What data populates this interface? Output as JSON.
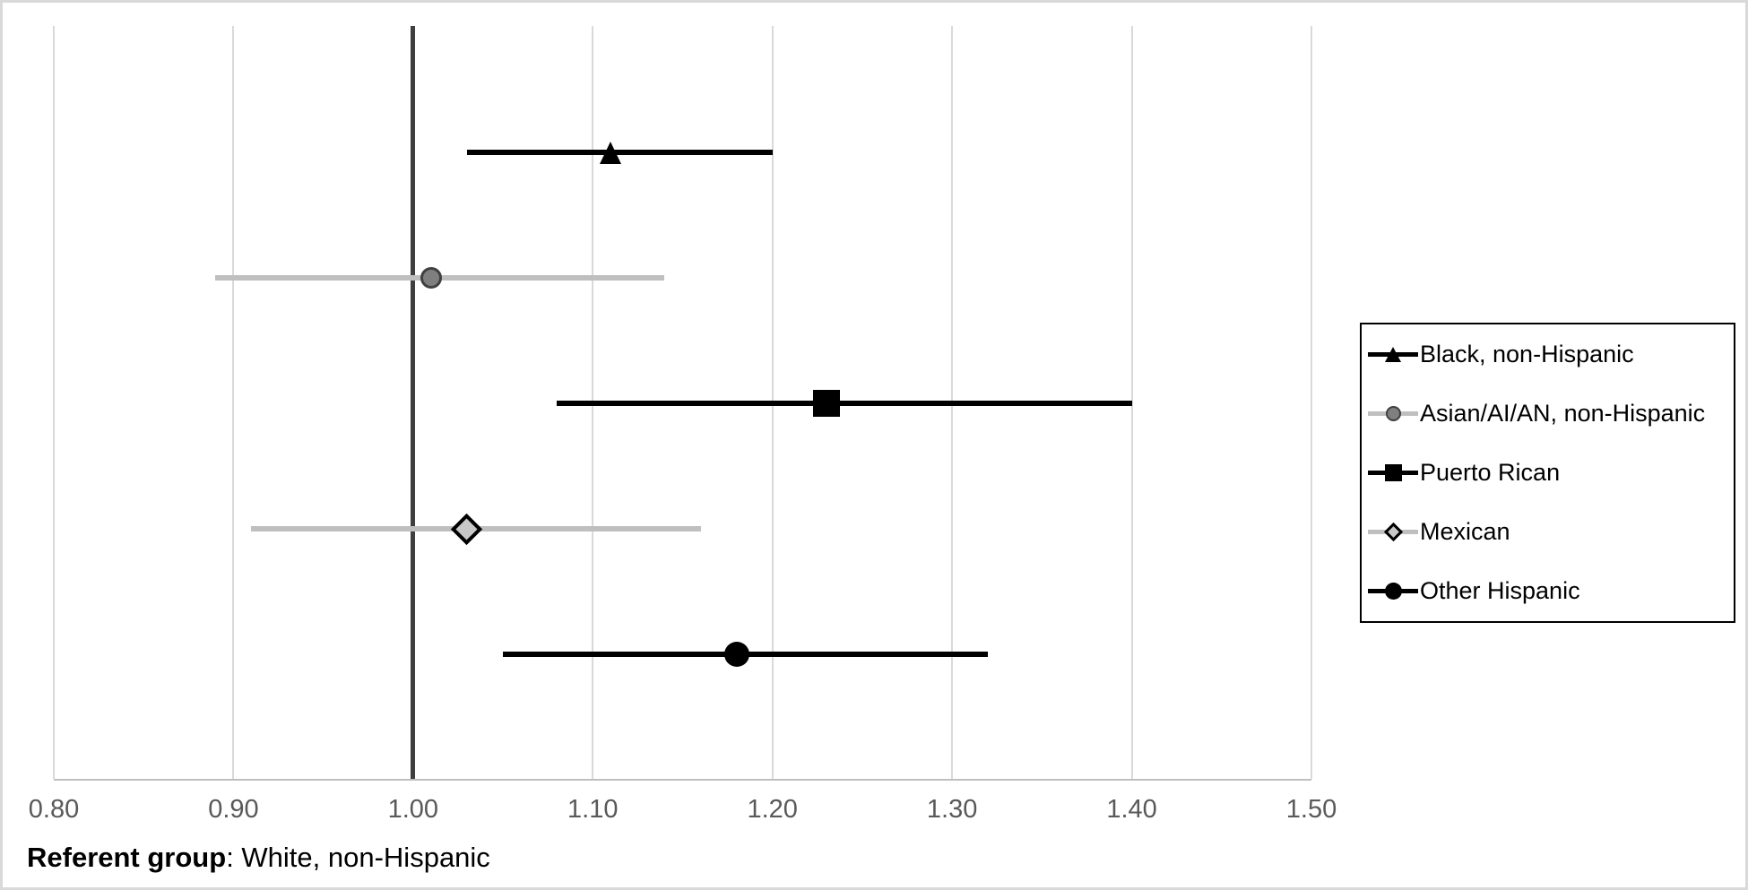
{
  "figure": {
    "background": "#ffffff",
    "outer_border_color": "#d9d9d9",
    "gridline_color": "#d9d9d9",
    "axis_line_color": "#bfbfbf",
    "tick_label_color": "#595959"
  },
  "chart_data": {
    "type": "scatter",
    "subtype": "forest-plot-horizontal-ci",
    "title": "",
    "xlabel": "",
    "ylabel": "",
    "x_axis": {
      "min": 0.8,
      "max": 1.5,
      "tick_interval": 0.1,
      "tick_values": [
        0.8,
        0.9,
        1.0,
        1.1,
        1.2,
        1.3,
        1.4,
        1.5
      ],
      "tick_labels": [
        "0.80",
        "0.90",
        "1.00",
        "1.10",
        "1.20",
        "1.30",
        "1.40",
        "1.50"
      ],
      "gridlines": true
    },
    "reference_line": {
      "x": 1.0,
      "color": "#3f3f3f"
    },
    "series": [
      {
        "name": "Black, non-Hispanic",
        "marker": "triangle",
        "estimate": 1.11,
        "ci_lower": 1.03,
        "ci_upper": 1.2,
        "line_color": "#000000",
        "marker_fill": "#000000",
        "marker_outline": "#000000"
      },
      {
        "name": "Asian/AI/AN, non-Hispanic",
        "marker": "circle",
        "estimate": 1.01,
        "ci_lower": 0.89,
        "ci_upper": 1.14,
        "line_color": "#bfbfbf",
        "marker_fill": "#7f7f7f",
        "marker_outline": "#404040"
      },
      {
        "name": "Puerto Rican",
        "marker": "square",
        "estimate": 1.23,
        "ci_lower": 1.08,
        "ci_upper": 1.4,
        "line_color": "#000000",
        "marker_fill": "#000000",
        "marker_outline": "#000000"
      },
      {
        "name": "Mexican",
        "marker": "diamond",
        "estimate": 1.03,
        "ci_lower": 0.91,
        "ci_upper": 1.16,
        "line_color": "#bfbfbf",
        "marker_fill": "#c8c8c8",
        "marker_outline": "#000000"
      },
      {
        "name": "Other Hispanic",
        "marker": "circle",
        "estimate": 1.18,
        "ci_lower": 1.05,
        "ci_upper": 1.32,
        "line_color": "#000000",
        "marker_fill": "#000000",
        "marker_outline": "#000000"
      }
    ],
    "legend": {
      "position": "right",
      "border_color": "#000000",
      "entries": [
        "Black, non-Hispanic",
        "Asian/AI/AN, non-Hispanic",
        "Puerto Rican",
        "Mexican",
        "Other Hispanic"
      ]
    },
    "footnote": {
      "bold": "Referent group",
      "rest": ": White, non-Hispanic"
    }
  }
}
